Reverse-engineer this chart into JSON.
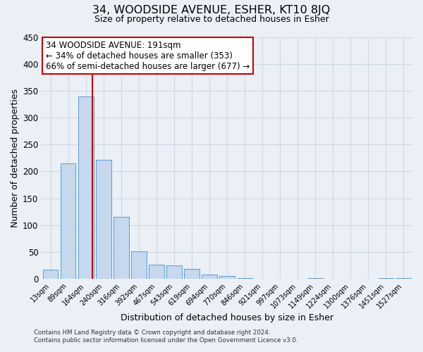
{
  "title": "34, WOODSIDE AVENUE, ESHER, KT10 8JQ",
  "subtitle": "Size of property relative to detached houses in Esher",
  "xlabel": "Distribution of detached houses by size in Esher",
  "ylabel": "Number of detached properties",
  "bar_labels": [
    "13sqm",
    "89sqm",
    "164sqm",
    "240sqm",
    "316sqm",
    "392sqm",
    "467sqm",
    "543sqm",
    "619sqm",
    "694sqm",
    "770sqm",
    "846sqm",
    "921sqm",
    "997sqm",
    "1073sqm",
    "1149sqm",
    "1224sqm",
    "1300sqm",
    "1376sqm",
    "1451sqm",
    "1527sqm"
  ],
  "bar_values": [
    17,
    215,
    340,
    222,
    115,
    51,
    26,
    25,
    19,
    8,
    6,
    2,
    0,
    0,
    0,
    2,
    0,
    0,
    0,
    2,
    2
  ],
  "bar_color": "#c5d8ed",
  "bar_edge_color": "#5b9bd5",
  "vline_pos": 2.36,
  "vline_color": "#cc0000",
  "ylim": [
    0,
    450
  ],
  "yticks": [
    0,
    50,
    100,
    150,
    200,
    250,
    300,
    350,
    400,
    450
  ],
  "annotation_title": "34 WOODSIDE AVENUE: 191sqm",
  "annotation_line1": "← 34% of detached houses are smaller (353)",
  "annotation_line2": "66% of semi-detached houses are larger (677) →",
  "annotation_box_color": "#ffffff",
  "annotation_box_edge": "#cc0000",
  "grid_color": "#cdd8e5",
  "bg_color": "#eaf0f6",
  "footer1": "Contains HM Land Registry data © Crown copyright and database right 2024.",
  "footer2": "Contains public sector information licensed under the Open Government Licence v3.0."
}
